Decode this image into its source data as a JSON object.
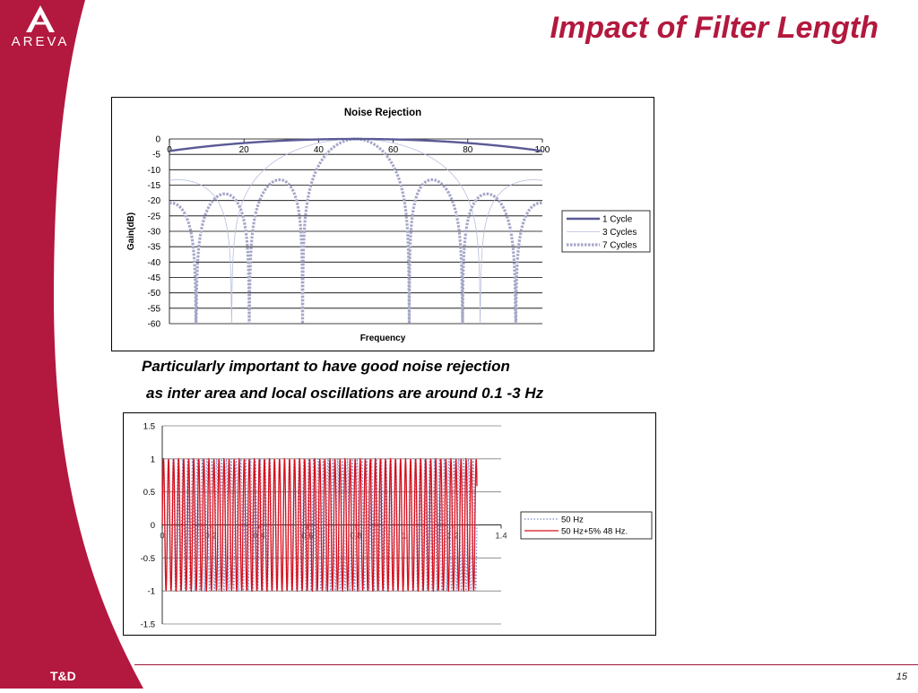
{
  "brand": {
    "logo_text": "AREVA",
    "footer_label": "T&D",
    "sidebar_color": "#b3183e",
    "accent_color": "#b3183e"
  },
  "slide": {
    "title": "Impact of Filter Length",
    "page_number": "15"
  },
  "captions": [
    "Particularly important to have good noise rejection",
    "as inter area and local oscillations are around 0.1 -3 Hz"
  ],
  "chart_data": [
    {
      "type": "line",
      "title": "Noise Rejection",
      "xlabel": "Frequency",
      "ylabel": "Gain(dB)",
      "xlim": [
        0,
        100
      ],
      "ylim": [
        -60,
        0
      ],
      "xticks": [
        "0",
        "20",
        "40",
        "60",
        "80",
        "100"
      ],
      "yticks": [
        "0",
        "-5",
        "-10",
        "-15",
        "-20",
        "-25",
        "-30",
        "-35",
        "-40",
        "-45",
        "-50",
        "-55",
        "-60"
      ],
      "x_axis_position": "top",
      "grid": "horizontal",
      "legend": "right",
      "center_frequency": 50,
      "series": [
        {
          "name": "1 Cycle",
          "cycles": 1,
          "color": "#5a5a96",
          "style": "solid-thick"
        },
        {
          "name": "3 Cycles",
          "cycles": 3,
          "color": "#b8bedc",
          "style": "thin"
        },
        {
          "name": "7 Cycles",
          "cycles": 7,
          "color": "#a4a6c8",
          "style": "dashed-thick"
        }
      ]
    },
    {
      "type": "line",
      "title": "",
      "xlabel": "",
      "ylabel": "",
      "xlim": [
        0,
        1.4
      ],
      "ylim": [
        -1.5,
        1.5
      ],
      "xticks": [
        "0",
        "0.2",
        "0.4",
        "0.6",
        "0.8",
        "1",
        "1.2",
        "1.4"
      ],
      "yticks": [
        "1.5",
        "1",
        "0.5",
        "0",
        "-0.5",
        "-1",
        "-1.5"
      ],
      "grid": "horizontal",
      "legend": "right",
      "duration": 1.3,
      "series": [
        {
          "name": "50 Hz",
          "frequency": 50,
          "amplitude": 1,
          "color": "#7b86c6",
          "style": "dotted"
        },
        {
          "name": "50 Hz+5% 48 Hz.",
          "frequency": 48,
          "amplitude": 1,
          "color": "#d8101c",
          "style": "solid"
        }
      ]
    }
  ]
}
